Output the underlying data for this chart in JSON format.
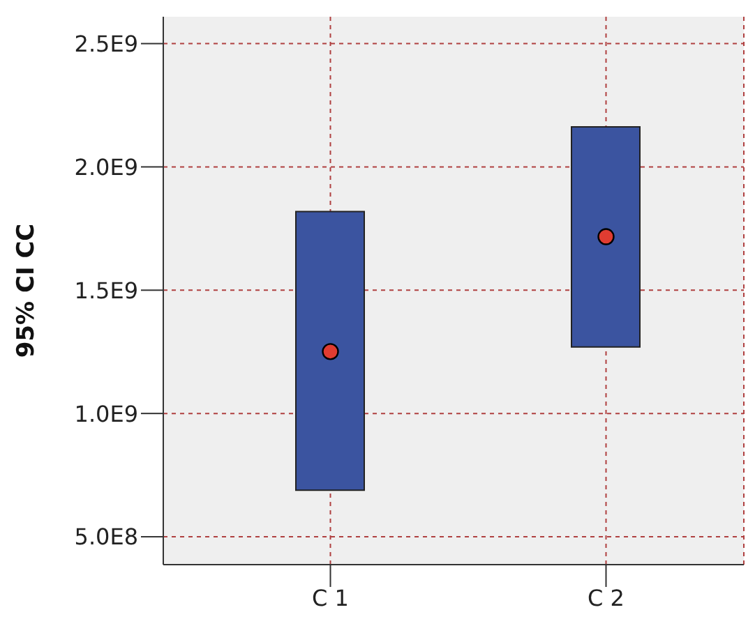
{
  "chart_data": {
    "type": "bar",
    "ylabel": "95% CI CC",
    "categories": [
      "C 1",
      "C 2"
    ],
    "series": [
      {
        "color": "#3b54a0",
        "base": [
          689000000,
          1270000000
        ],
        "values": [
          1130000000,
          892000000
        ]
      },
      {
        "type": "scatter",
        "color": "#e03c31",
        "marker": "circle",
        "x": [
          "C 1",
          "C 2"
        ],
        "values": [
          1251000000,
          1717000000
        ]
      }
    ],
    "ylim": [
      387000000,
      2609000000
    ],
    "yticks": [
      {
        "value": 500000000,
        "label": "5.0E8"
      },
      {
        "value": 1000000000,
        "label": "1.0E9"
      },
      {
        "value": 1500000000,
        "label": "1.5E9"
      },
      {
        "value": 2000000000,
        "label": "2.0E9"
      },
      {
        "value": 2500000000,
        "label": "2.5E9"
      }
    ],
    "grid": true
  }
}
